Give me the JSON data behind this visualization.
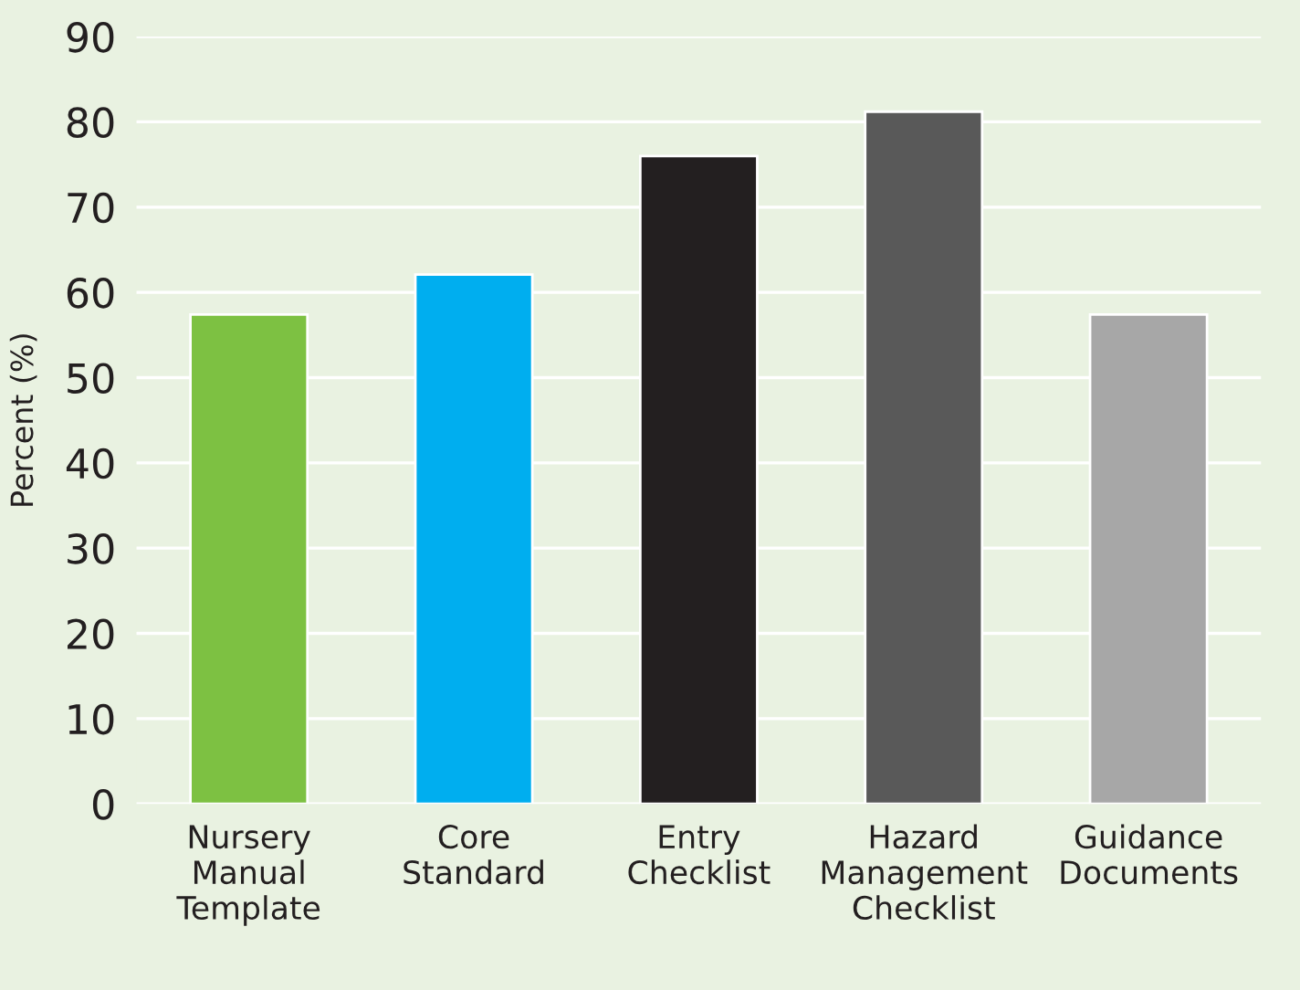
{
  "chart_data": {
    "type": "bar",
    "ylabel": "Percent (%)",
    "categories": [
      "Nursery\nManual\nTemplate",
      "Core\nStandard",
      "Entry\nChecklist",
      "Hazard\nManagement\nChecklist",
      "Guidance\nDocuments"
    ],
    "values": [
      57.4,
      62.1,
      76.0,
      81.2,
      57.4
    ],
    "colors": [
      "#7dc142",
      "#00aeef",
      "#231f20",
      "#595959",
      "#a7a7a7"
    ],
    "ylim": [
      0,
      90
    ],
    "yticks": [
      0,
      10,
      20,
      30,
      40,
      50,
      60,
      70,
      80,
      90
    ],
    "grid": "y"
  }
}
